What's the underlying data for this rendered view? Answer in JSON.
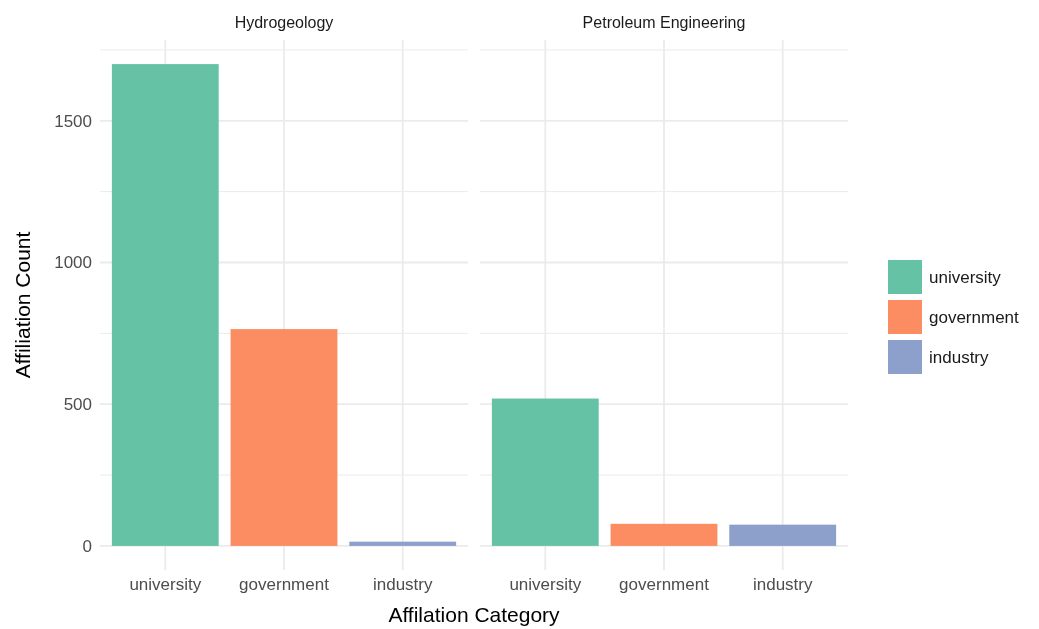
{
  "chart_data": [
    {
      "type": "bar",
      "title": "Hydrogeology",
      "xlabel": "Affilation Category",
      "ylabel": "Affiliation Count",
      "categories": [
        "university",
        "government",
        "industry"
      ],
      "stacked": true,
      "series": [
        {
          "color": "#66c2a5",
          "values": [
            1700,
            null,
            null
          ]
        },
        {
          "color": "#fc8d62",
          "values": [
            null,
            765,
            null
          ]
        },
        {
          "color": "#8da0cb",
          "values": [
            null,
            null,
            15
          ]
        }
      ],
      "ylim": [
        -85,
        1785
      ],
      "yticks": [
        0,
        {
          "value": 250,
          "label": null
        },
        500,
        {
          "value": 750,
          "label": null
        },
        1000,
        {
          "value": 1250,
          "label": null
        },
        1500,
        {
          "value": 1750,
          "label": null
        }
      ],
      "grid": true
    },
    {
      "type": "bar",
      "title": "Petroleum Engineering",
      "categories": [
        "university",
        "government",
        "industry"
      ],
      "stacked": true,
      "series": [
        {
          "name": "university",
          "color": "#66c2a5",
          "values": [
            520,
            null,
            null
          ]
        },
        {
          "name": "government",
          "color": "#fc8d62",
          "values": [
            null,
            78,
            null
          ]
        },
        {
          "name": "industry",
          "color": "#8da0cb",
          "values": [
            null,
            null,
            75
          ]
        }
      ],
      "ylim": [
        -85,
        1785
      ],
      "yticks": [
        0,
        {
          "value": 250,
          "label": null
        },
        500,
        {
          "value": 750,
          "label": null
        },
        1000,
        {
          "value": 1250,
          "label": null
        },
        1500,
        {
          "value": 1750,
          "label": null
        }
      ],
      "grid": true,
      "tick_labels": "x",
      "legend": "right"
    }
  ]
}
